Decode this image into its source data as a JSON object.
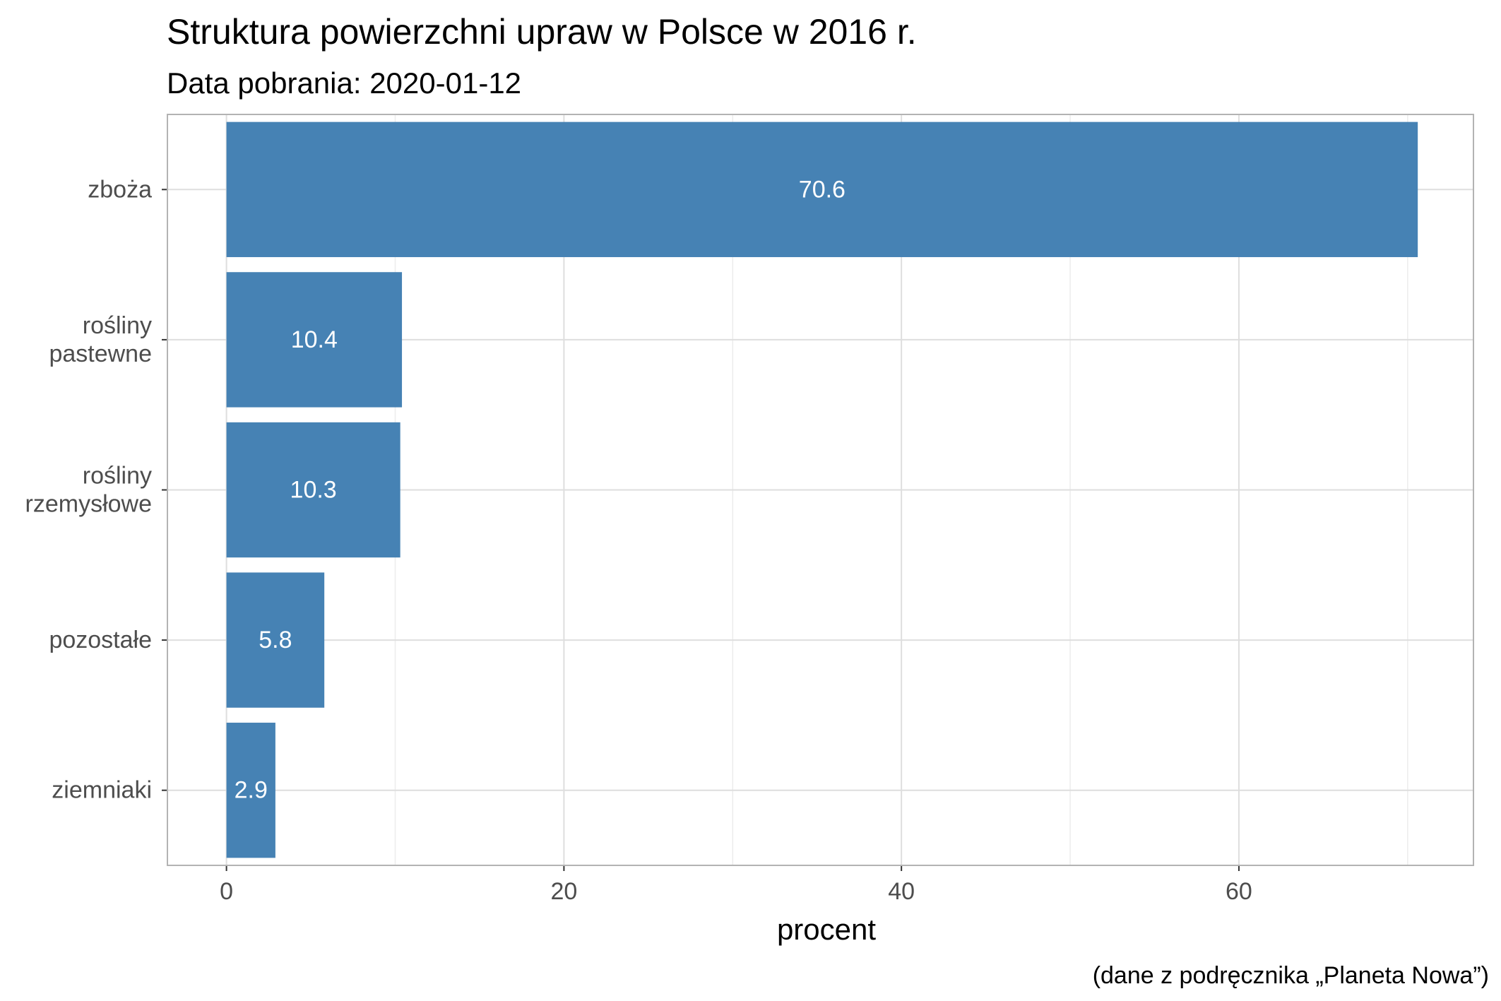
{
  "chart_data": {
    "type": "bar",
    "orientation": "horizontal",
    "title": "Struktura powierzchni upraw w Polsce w 2016 r.",
    "subtitle": "Data pobrania: 2020-01-12",
    "xlabel": "procent",
    "ylabel": "",
    "caption": "(dane z podręcznika „Planeta Nowa”)",
    "categories": [
      [
        "zboża"
      ],
      [
        "rośliny",
        "pastewne"
      ],
      [
        "rośliny",
        "rzemysłowe"
      ],
      [
        "pozostałe"
      ],
      [
        "ziemniaki"
      ]
    ],
    "values": [
      70.6,
      10.4,
      10.3,
      5.8,
      2.9
    ],
    "data_labels": [
      "70.6",
      "10.4",
      "10.3",
      "5.8",
      "2.9"
    ],
    "xlim": [
      -3.5,
      73.9
    ],
    "x_ticks": [
      0,
      20,
      40,
      60
    ],
    "grid": true,
    "bar_color": "#4682b4",
    "grid_color": "#dedede",
    "panel_border_color": "#b3b3b3"
  }
}
